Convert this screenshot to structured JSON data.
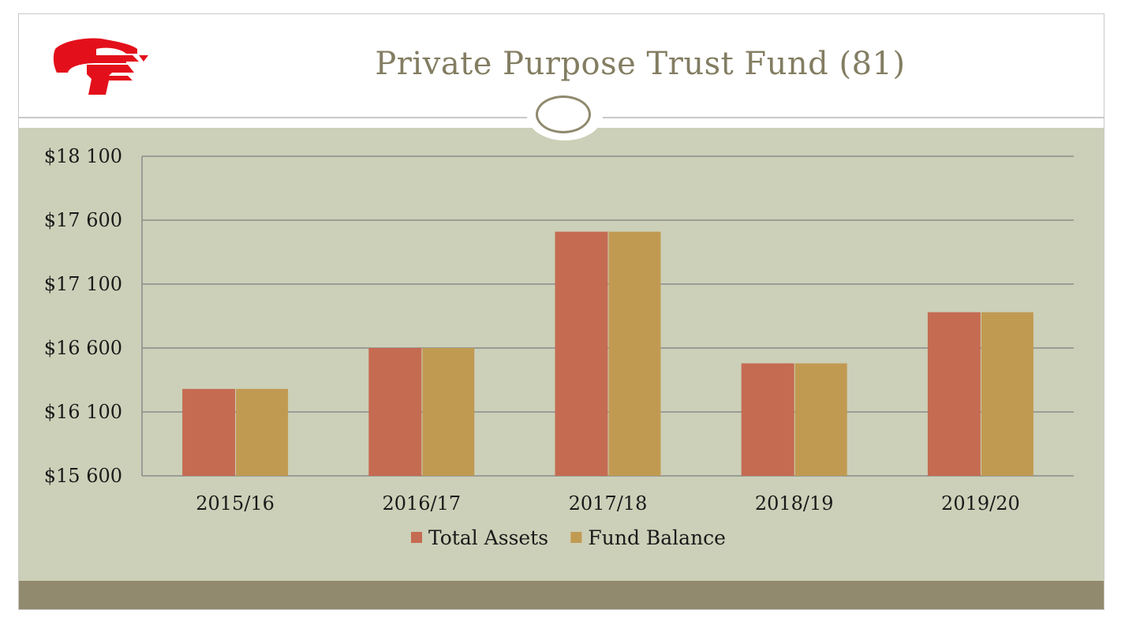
{
  "slide": {
    "title": "Private Purpose Trust Fund (81)",
    "logo_icon": "cf-logo-icon",
    "ornament_icon": "oval-ring-icon"
  },
  "colors": {
    "title_text": "#837d62",
    "content_background": "#ccd0b8",
    "footer_band": "#928a6e",
    "gridline": "#8a8a8a",
    "logo_red": "#e3101b"
  },
  "chart_data": {
    "type": "bar",
    "title": "",
    "xlabel": "",
    "ylabel": "",
    "categories": [
      "2015/16",
      "2016/17",
      "2017/18",
      "2018/19",
      "2019/20"
    ],
    "series": [
      {
        "name": "Total Assets",
        "color": "#c56b52",
        "values": [
          16280,
          16600,
          17510,
          16480,
          16880
        ]
      },
      {
        "name": "Fund Balance",
        "color": "#c19a52",
        "values": [
          16280,
          16600,
          17510,
          16480,
          16880
        ]
      }
    ],
    "ylim": [
      15600,
      18100
    ],
    "ytick_values": [
      15600,
      16100,
      16600,
      17100,
      17600,
      18100
    ],
    "ytick_labels": [
      "$15 600",
      "$16 100",
      "$16 600",
      "$17 100",
      "$17 600",
      "$18 100"
    ],
    "grid": true,
    "legend_position": "bottom"
  }
}
